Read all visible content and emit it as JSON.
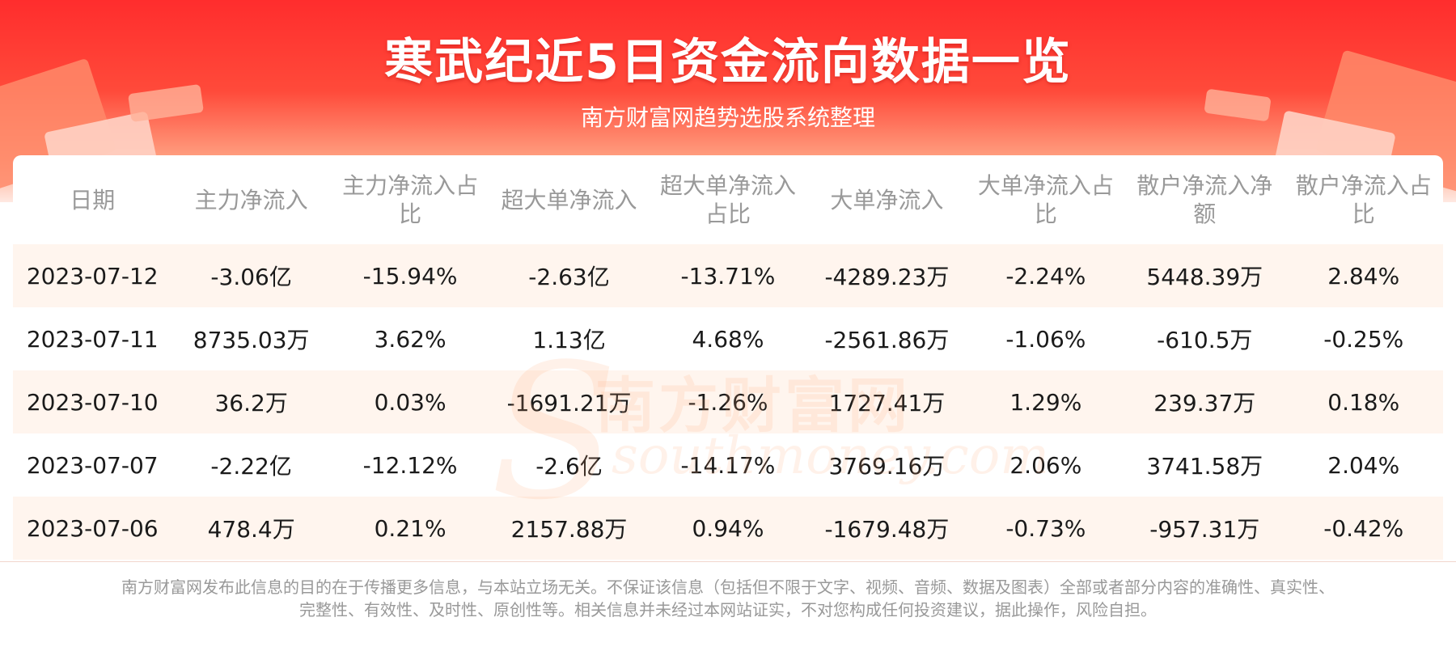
{
  "header": {
    "title": "寒武纪近5日资金流向数据一览",
    "subtitle": "南方财富网趋势选股系统整理"
  },
  "watermark": {
    "cn": "南方财富网",
    "en": "southmoney.com"
  },
  "table": {
    "columns": [
      "日期",
      "主力净流入",
      "主力净流入占比",
      "超大单净流入",
      "超大单净流入占比",
      "大单净流入",
      "大单净流入占比",
      "散户净流入净额",
      "散户净流入占比"
    ],
    "rows": [
      [
        "2023-07-12",
        "-3.06亿",
        "-15.94%",
        "-2.63亿",
        "-13.71%",
        "-4289.23万",
        "-2.24%",
        "5448.39万",
        "2.84%"
      ],
      [
        "2023-07-11",
        "8735.03万",
        "3.62%",
        "1.13亿",
        "4.68%",
        "-2561.86万",
        "-1.06%",
        "-610.5万",
        "-0.25%"
      ],
      [
        "2023-07-10",
        "36.2万",
        "0.03%",
        "-1691.21万",
        "-1.26%",
        "1727.41万",
        "1.29%",
        "239.37万",
        "0.18%"
      ],
      [
        "2023-07-07",
        "-2.22亿",
        "-12.12%",
        "-2.6亿",
        "-14.17%",
        "3769.16万",
        "2.06%",
        "3741.58万",
        "2.04%"
      ],
      [
        "2023-07-06",
        "478.4万",
        "0.21%",
        "2157.88万",
        "0.94%",
        "-1679.48万",
        "-0.73%",
        "-957.31万",
        "-0.42%"
      ]
    ]
  },
  "footer": {
    "line1": "南方财富网发布此信息的目的在于传播更多信息，与本站立场无关。不保证该信息（包括但不限于文字、视频、音频、数据及图表）全部或者部分内容的准确性、真实性、",
    "line2": "完整性、有效性、及时性、原创性等。相关信息并未经过本网站证实，不对您构成任何投资建议，据此操作，风险自担。"
  }
}
